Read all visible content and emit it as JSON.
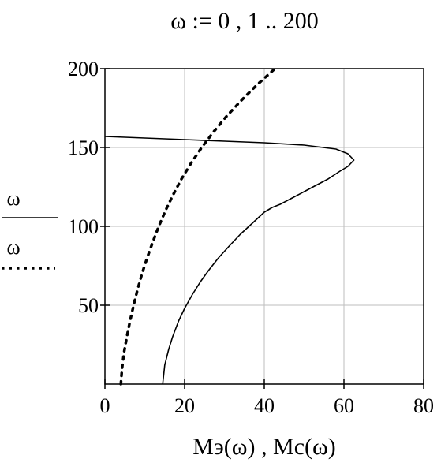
{
  "header": {
    "formula": "ω := 0 , 1 .. 200"
  },
  "chart_data": {
    "type": "line",
    "title": "",
    "xlabel": "Mэ(ω) , Mc(ω)",
    "xlim": [
      0,
      80
    ],
    "ylim": [
      0,
      200
    ],
    "xticks": [
      0,
      20,
      40,
      60,
      80
    ],
    "yticks": [
      50,
      100,
      150,
      200
    ],
    "grid": true,
    "legend_placement": "left",
    "series": [
      {
        "name": "ω",
        "style": "solid",
        "color": "#000000",
        "points": [
          [
            14.5,
            0
          ],
          [
            15,
            12
          ],
          [
            16,
            22
          ],
          [
            17,
            30
          ],
          [
            18.5,
            40
          ],
          [
            20,
            48
          ],
          [
            22,
            57
          ],
          [
            24,
            65
          ],
          [
            26,
            72
          ],
          [
            28.5,
            80
          ],
          [
            31,
            87
          ],
          [
            34,
            95
          ],
          [
            37,
            102
          ],
          [
            40,
            109
          ],
          [
            42,
            112
          ],
          [
            44,
            114
          ],
          [
            47,
            118
          ],
          [
            50,
            122
          ],
          [
            53,
            126
          ],
          [
            56,
            130
          ],
          [
            59,
            135
          ],
          [
            61,
            138
          ],
          [
            62.5,
            142
          ],
          [
            61,
            146
          ],
          [
            58,
            149
          ],
          [
            50,
            151.5
          ],
          [
            40,
            153
          ],
          [
            30,
            154
          ],
          [
            20,
            155
          ],
          [
            10,
            156
          ],
          [
            0,
            157
          ]
        ]
      },
      {
        "name": "ω",
        "style": "dotted",
        "color": "#000000",
        "points": [
          [
            4,
            0
          ],
          [
            4.3,
            10
          ],
          [
            4.8,
            20
          ],
          [
            5.5,
            30
          ],
          [
            6.3,
            40
          ],
          [
            7.2,
            50
          ],
          [
            8.2,
            60
          ],
          [
            9.3,
            70
          ],
          [
            10.6,
            80
          ],
          [
            12,
            90
          ],
          [
            13.5,
            100
          ],
          [
            15.2,
            110
          ],
          [
            17.1,
            120
          ],
          [
            19.2,
            130
          ],
          [
            21.6,
            140
          ],
          [
            24.3,
            150
          ],
          [
            27.3,
            160
          ],
          [
            30.6,
            170
          ],
          [
            34.3,
            180
          ],
          [
            38.3,
            190
          ],
          [
            42.7,
            200
          ]
        ]
      }
    ]
  }
}
